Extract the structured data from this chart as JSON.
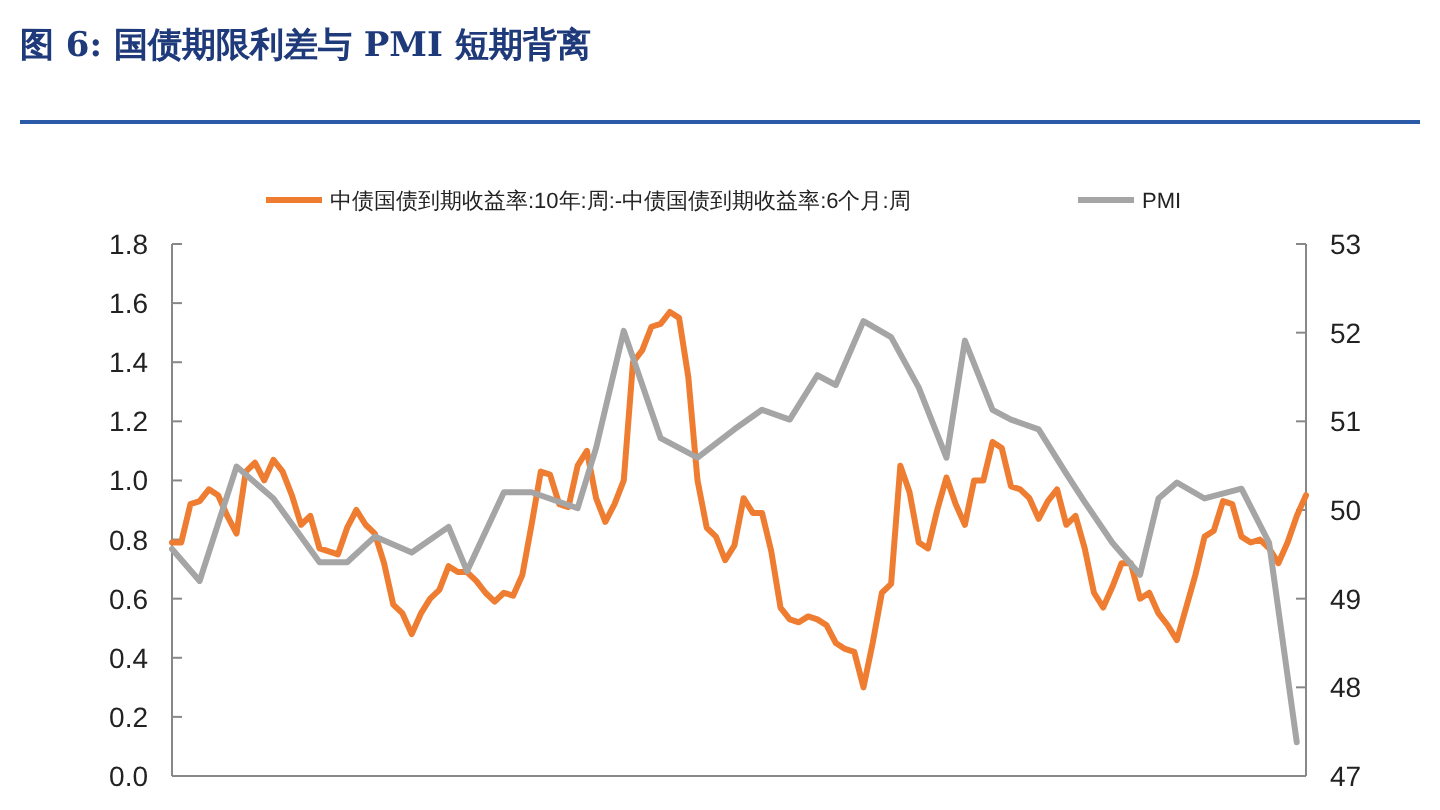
{
  "chart_data": {
    "type": "line",
    "title": "图 6: 国债期限利差与 PMI 短期背离",
    "legend": "top",
    "line_style": "solid",
    "marker": "none",
    "grid": false,
    "categories": [
      null,
      null,
      null,
      null,
      null,
      null,
      null,
      null,
      null,
      null,
      null,
      null,
      null,
      null,
      null,
      null,
      null,
      null,
      null,
      null,
      null,
      null,
      null,
      null,
      null,
      null,
      null,
      null,
      null,
      null,
      null,
      null,
      null,
      null,
      null,
      null,
      null,
      null,
      null,
      null,
      null,
      null,
      null,
      null,
      null,
      null,
      null,
      null,
      null,
      null,
      null,
      null,
      null,
      null,
      null,
      null,
      null,
      null,
      null,
      null,
      null,
      null,
      null,
      null,
      null,
      null,
      null,
      null,
      null,
      null,
      null,
      null,
      null,
      null,
      null,
      null,
      null,
      null,
      null,
      null,
      null,
      null,
      null,
      null,
      null,
      null,
      null,
      null,
      null,
      null,
      null,
      null,
      null,
      null,
      null,
      null,
      null,
      null,
      null,
      null,
      null,
      null,
      null,
      null,
      null,
      null,
      null,
      null,
      null,
      null,
      null,
      null,
      null,
      null,
      null,
      null,
      null,
      null,
      null,
      null,
      null,
      null,
      null,
      null
    ],
    "ylim": [
      0,
      1.8
    ],
    "yticks": [
      {
        "value": 0,
        "label": "0.0"
      },
      {
        "value": 0.2,
        "label": "0.2"
      },
      {
        "value": 0.4,
        "label": "0.4"
      },
      {
        "value": 0.6,
        "label": "0.6"
      },
      {
        "value": 0.8,
        "label": "0.8"
      },
      {
        "value": 1,
        "label": "1.0"
      },
      {
        "value": 1.2,
        "label": "1.2"
      },
      {
        "value": 1.4,
        "label": "1.4"
      },
      {
        "value": 1.6,
        "label": "1.6"
      },
      {
        "value": 1.8,
        "label": "1.8"
      }
    ],
    "y2lim": [
      47,
      53
    ],
    "y2ticks": [
      47,
      48,
      49,
      50,
      51,
      52,
      53
    ],
    "series": [
      {
        "name": "中债国债到期收益率:10年:周:-中债国债到期收益率:6个月:周",
        "color": "#ee7d31",
        "values": [
          0.79,
          0.79,
          0.92,
          0.93,
          0.97,
          0.95,
          0.88,
          0.82,
          1.03,
          1.06,
          1.0,
          1.07,
          1.03,
          0.95,
          0.85,
          0.88,
          0.77,
          0.76,
          0.75,
          0.84,
          0.9,
          0.85,
          0.82,
          0.72,
          0.58,
          0.55,
          0.48,
          0.55,
          0.6,
          0.63,
          0.71,
          0.69,
          0.69,
          0.66,
          0.62,
          0.59,
          0.62,
          0.61,
          0.68,
          0.85,
          1.03,
          1.02,
          0.92,
          0.91,
          1.05,
          1.1,
          0.94,
          0.86,
          0.92,
          1.0,
          1.4,
          1.44,
          1.52,
          1.53,
          1.57,
          1.55,
          1.35,
          1.0,
          0.84,
          0.81,
          0.73,
          0.78,
          0.94,
          0.89,
          0.89,
          0.76,
          0.57,
          0.53,
          0.52,
          0.54,
          0.53,
          0.51,
          0.45,
          0.43,
          0.42,
          0.3,
          0.45,
          0.62,
          0.65,
          1.05,
          0.96,
          0.79,
          0.77,
          0.9,
          1.01,
          0.92,
          0.85,
          1.0,
          1.0,
          1.13,
          1.11,
          0.98,
          0.97,
          0.94,
          0.87,
          0.93,
          0.97,
          0.85,
          0.88,
          0.77,
          0.62,
          0.57,
          0.64,
          0.72,
          0.72,
          0.6,
          0.62,
          0.55,
          0.51,
          0.46,
          0.57,
          0.68,
          0.81,
          0.83,
          0.93,
          0.92,
          0.81,
          0.79,
          0.8,
          0.77,
          0.72,
          0.79,
          0.88,
          0.95
        ]
      },
      {
        "name": "PMI",
        "color": "#a5a5a5",
        "axis": "y2",
        "values": [
          49.56,
          null,
          null,
          49.2,
          null,
          null,
          null,
          50.49,
          null,
          null,
          null,
          50.13,
          null,
          null,
          null,
          null,
          49.41,
          null,
          null,
          49.41,
          null,
          null,
          49.7,
          null,
          null,
          null,
          49.52,
          null,
          null,
          null,
          49.81,
          null,
          49.31,
          null,
          null,
          null,
          50.2,
          null,
          null,
          50.2,
          null,
          null,
          null,
          null,
          50.02,
          null,
          50.7,
          null,
          null,
          52.02,
          null,
          null,
          null,
          50.81,
          null,
          null,
          null,
          50.59,
          null,
          null,
          null,
          50.91,
          null,
          null,
          51.13,
          null,
          null,
          51.02,
          null,
          null,
          51.52,
          null,
          51.41,
          null,
          null,
          52.13,
          null,
          null,
          51.95,
          null,
          null,
          51.38,
          null,
          null,
          50.59,
          null,
          51.91,
          null,
          null,
          51.13,
          null,
          51.02,
          null,
          null,
          50.91,
          null,
          null,
          50.41,
          null,
          50.09,
          null,
          null,
          49.63,
          null,
          null,
          49.27,
          null,
          50.13,
          null,
          50.31,
          null,
          null,
          50.13,
          null,
          null,
          null,
          50.24,
          null,
          null,
          49.63,
          null,
          null,
          47.38,
          null
        ]
      }
    ]
  }
}
